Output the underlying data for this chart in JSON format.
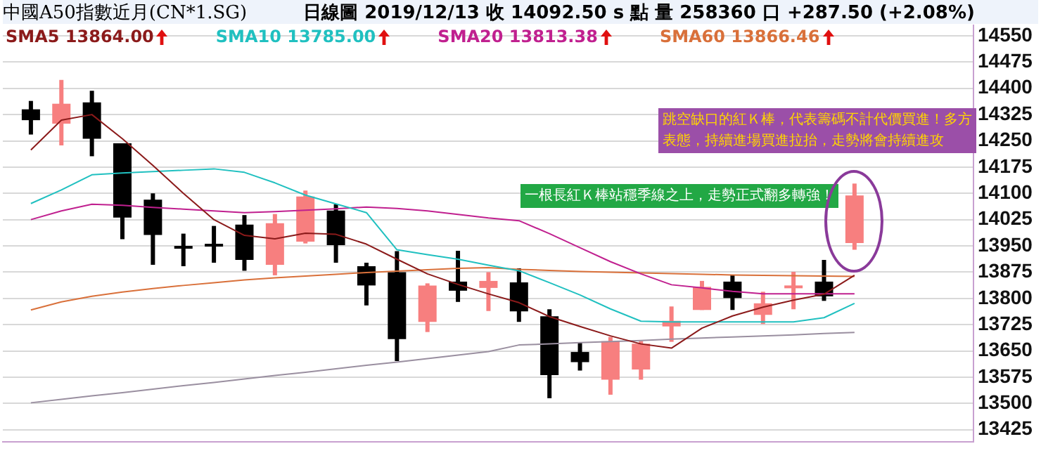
{
  "chart_data": {
    "type": "candlestick",
    "title": "中國A50指數近月(CN*1.SG)",
    "subtitle": "日線圖 2019/12/13 收 14092.50 s 點 量 258360 口 +287.50 (+2.08%)",
    "categories": [
      null,
      null,
      null,
      null,
      null,
      null,
      null,
      null,
      null,
      null,
      null,
      null,
      null,
      null,
      null,
      null,
      null,
      null,
      null,
      null,
      null,
      null,
      null,
      null,
      null,
      null,
      null,
      null
    ],
    "ohlc": [
      [
        14340,
        14364,
        14268,
        14309
      ],
      [
        14299,
        14424,
        14237,
        14356
      ],
      [
        14360,
        14393,
        14206,
        14256
      ],
      [
        14243,
        14243,
        13969,
        14031
      ],
      [
        14082,
        14100,
        13896,
        13981
      ],
      [
        13950,
        13985,
        13892,
        13948
      ],
      [
        13956,
        14007,
        13902,
        13954
      ],
      [
        14011,
        14038,
        13879,
        13910
      ],
      [
        13896,
        14041,
        13866,
        14015
      ],
      [
        13962,
        14108,
        13957,
        14091
      ],
      [
        14051,
        14069,
        13902,
        13952
      ],
      [
        13892,
        13902,
        13780,
        13837
      ],
      [
        13875,
        13935,
        13621,
        13684
      ],
      [
        13733,
        13843,
        13704,
        13837
      ],
      [
        13848,
        13936,
        13790,
        13822
      ],
      [
        13830,
        13875,
        13764,
        13850
      ],
      [
        13846,
        13886,
        13733,
        13763
      ],
      [
        13749,
        13769,
        13515,
        13581
      ],
      [
        13647,
        13674,
        13594,
        13618
      ],
      [
        13568,
        13690,
        13525,
        13678
      ],
      [
        13597,
        13678,
        13568,
        13671
      ],
      [
        13720,
        13777,
        13676,
        13736
      ],
      [
        13767,
        13850,
        13767,
        13833
      ],
      [
        13848,
        13866,
        13767,
        13801
      ],
      [
        13753,
        13819,
        13727,
        13786
      ],
      [
        13830,
        13876,
        13769,
        13837
      ],
      [
        13848,
        13910,
        13793,
        13806
      ],
      [
        13958,
        14128,
        13939,
        14094
      ]
    ],
    "colors": [
      "#000000",
      "#f77f7f",
      "#000000",
      "#000000",
      "#000000",
      "#000000",
      "#000000",
      "#000000",
      "#f77f7f",
      "#f77f7f",
      "#000000",
      "#000000",
      "#000000",
      "#f77f7f",
      "#000000",
      "#f77f7f",
      "#000000",
      "#000000",
      "#000000",
      "#f77f7f",
      "#f77f7f",
      "#f77f7f",
      "#f77f7f",
      "#000000",
      "#f77f7f",
      "#f77f7f",
      "#000000",
      "#f77f7f"
    ],
    "series": [
      {
        "type": "line",
        "name": "SMA5 13864.00",
        "color": "#8b1a1a",
        "values": [
          14224,
          14309,
          14325,
          14256,
          14180,
          14100,
          14025,
          13980,
          13970,
          13986,
          13983,
          13955,
          13912,
          13870,
          13840,
          13813,
          13788,
          13748,
          13720,
          13693,
          13670,
          13658,
          13715,
          13750,
          13775,
          13795,
          13812,
          13866
        ]
      },
      {
        "type": "line",
        "name": "SMA10 13785.00",
        "color": "#20c0c0",
        "values": [
          14071,
          14110,
          14153,
          14158,
          14162,
          14166,
          14170,
          14160,
          14130,
          14095,
          14070,
          14045,
          13939,
          13925,
          13912,
          13895,
          13879,
          13845,
          13810,
          13770,
          13735,
          13733,
          13733,
          13733,
          13733,
          13733,
          13745,
          13786
        ]
      },
      {
        "type": "line",
        "name": "SMA20 13813.38",
        "color": "#c0208f",
        "values": [
          14025,
          14050,
          14069,
          14066,
          14060,
          14055,
          14050,
          14045,
          14048,
          14052,
          14056,
          14061,
          14057,
          14050,
          14040,
          14030,
          14022,
          13985,
          13945,
          13905,
          13870,
          13839,
          13830,
          13820,
          13813,
          13813,
          13813,
          13813
        ]
      },
      {
        "type": "line",
        "name": "SMA60 13866.46",
        "color": "#d9703a",
        "values": [
          13767,
          13790,
          13806,
          13818,
          13828,
          13837,
          13845,
          13853,
          13859,
          13864,
          13869,
          13874,
          13878,
          13882,
          13886,
          13888,
          13883,
          13880,
          13877,
          13875,
          13873,
          13871,
          13869,
          13867,
          13866,
          13865,
          13864,
          13863
        ]
      },
      {
        "type": "line",
        "color": "#9a8fa0",
        "values": [
          13502,
          13512,
          13522,
          13531,
          13541,
          13551,
          13560,
          13570,
          13580,
          13589,
          13599,
          13609,
          13618,
          13628,
          13638,
          13648,
          13667,
          13670,
          13674,
          13677,
          13680,
          13684,
          13687,
          13690,
          13693,
          13696,
          13700,
          13703
        ]
      }
    ],
    "ylim": [
      13390,
      14580
    ],
    "yticks": [
      13425,
      13500,
      13575,
      13650,
      13725,
      13800,
      13875,
      13950,
      14025,
      14100,
      14175,
      14250,
      14325,
      14400,
      14475,
      14550
    ],
    "grid": "y",
    "tick_labels": "y",
    "legend": "top left",
    "annotations": [
      "一根長紅Ｋ棒站穩季線之上，走勢正式翻多轉強！",
      "跳空缺口的紅Ｋ棒，代表籌碼不計代價買進！多方表態，持續進場買進拉抬，走勢將會持續進攻"
    ]
  }
}
